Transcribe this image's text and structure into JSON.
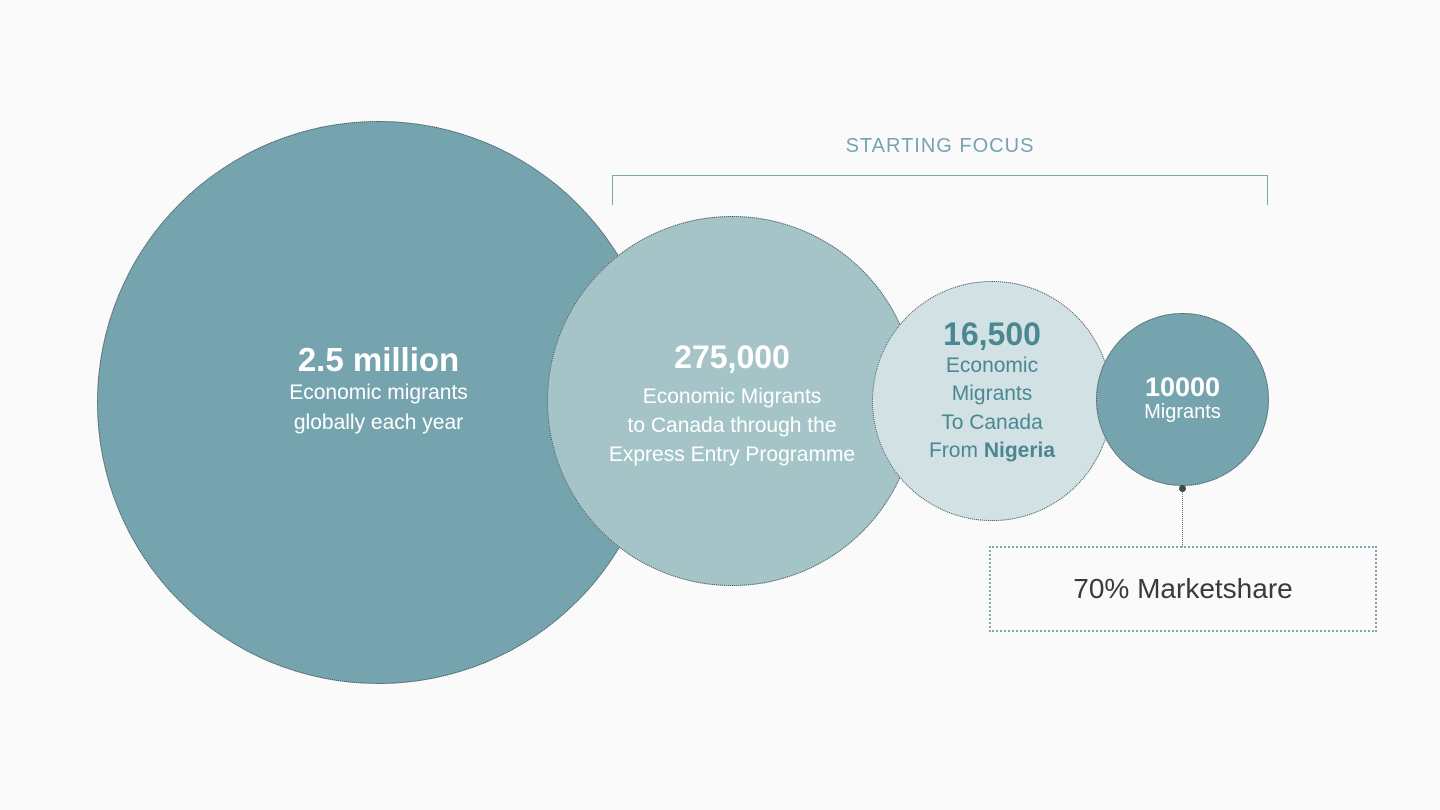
{
  "focus": {
    "label": "STARTING FOCUS"
  },
  "circles": [
    {
      "value": "2.5 million",
      "lines": [
        "Economic migrants",
        "globally each year"
      ]
    },
    {
      "value": "275,000",
      "lines": [
        "Economic Migrants",
        "to Canada through the",
        "Express Entry Programme"
      ]
    },
    {
      "value": "16,500",
      "lines": [
        "Economic",
        "Migrants",
        "To Canada"
      ],
      "last_prefix": "From ",
      "last_highlight": "Nigeria"
    },
    {
      "value": "10000",
      "lines": [
        "Migrants"
      ]
    }
  ],
  "callout": {
    "text": "70% Marketshare"
  },
  "colors": {
    "teal_dark": "#76a4ae",
    "teal_mid": "#a5c4c8",
    "teal_light": "#d2e2e4",
    "accent_text": "#4b8791"
  }
}
